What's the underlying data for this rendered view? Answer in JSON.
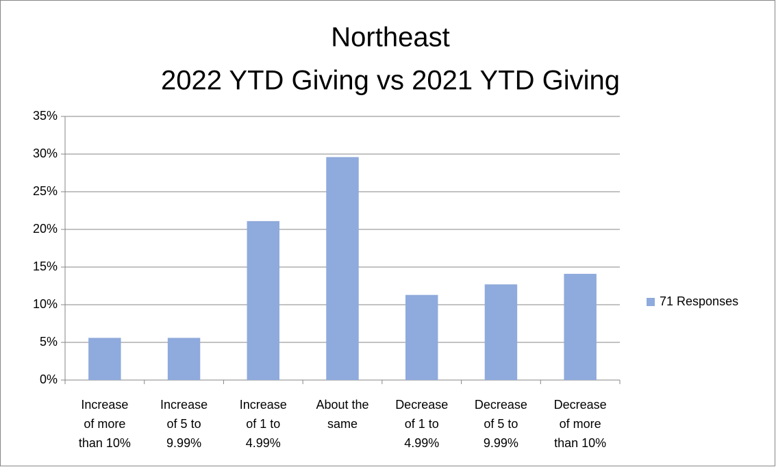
{
  "chart_data": {
    "type": "bar",
    "title": [
      "Northeast",
      "2022 YTD Giving vs 2021 YTD Giving"
    ],
    "categories": [
      [
        "Increase",
        "of more",
        "than 10%"
      ],
      [
        "Increase",
        "of 5 to",
        "9.99%"
      ],
      [
        "Increase",
        "of 1 to",
        "4.99%"
      ],
      [
        "About the",
        "same"
      ],
      [
        "Decrease",
        "of 1 to",
        "4.99%"
      ],
      [
        "Decrease",
        "of 5 to",
        "9.99%"
      ],
      [
        "Decrease",
        "of more",
        "than 10%"
      ]
    ],
    "series": [
      {
        "name": "71 Responses",
        "color": "#8faadc",
        "values": [
          5.6,
          5.6,
          21.1,
          29.6,
          11.3,
          12.7,
          14.1
        ]
      }
    ],
    "ylim": [
      0,
      35
    ],
    "yticks": [
      {
        "value": 0,
        "label": "0%"
      },
      {
        "value": 5,
        "label": "5%"
      },
      {
        "value": 10,
        "label": "10%"
      },
      {
        "value": 15,
        "label": "15%"
      },
      {
        "value": 20,
        "label": "20%"
      },
      {
        "value": 25,
        "label": "25%"
      },
      {
        "value": 30,
        "label": "30%"
      },
      {
        "value": 35,
        "label": "35%"
      }
    ],
    "grid": true,
    "legend": "right"
  }
}
